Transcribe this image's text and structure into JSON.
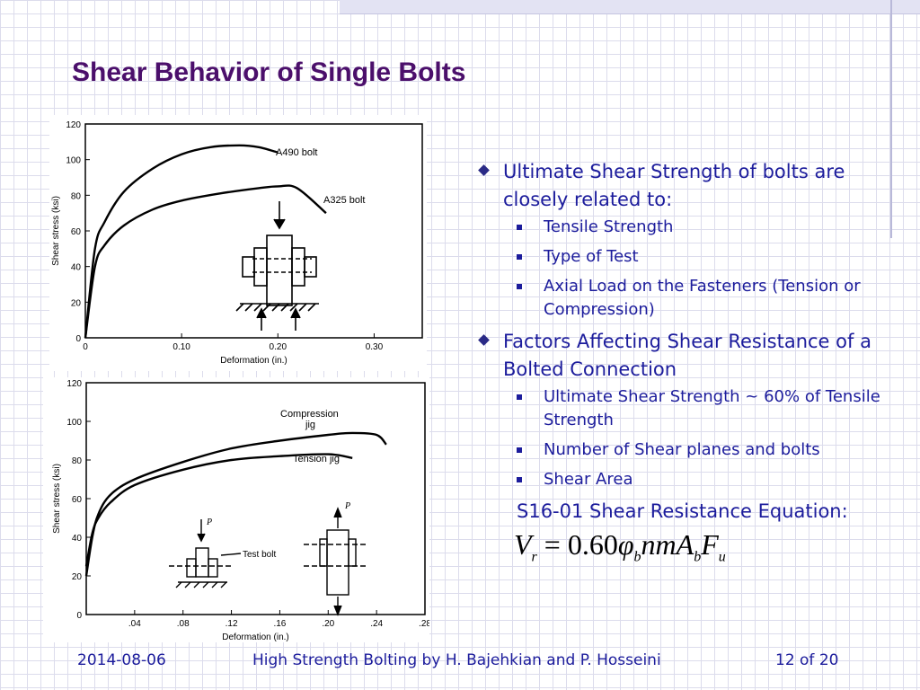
{
  "slide": {
    "title": "Shear Behavior of Single Bolts",
    "bullets": [
      {
        "text": "Ultimate Shear Strength of bolts are closely related to:",
        "sub": [
          "Tensile Strength",
          "Type of Test",
          "Axial Load on the Fasteners (Tension or Compression)"
        ]
      },
      {
        "text": "Factors Affecting Shear Resistance of a Bolted Connection",
        "sub": [
          "Ultimate Shear Strength ~ 60% of Tensile Strength",
          "Number of Shear planes and bolts",
          "Shear Area"
        ]
      }
    ],
    "equation_label": "S16-01 Shear Resistance Equation:",
    "equation": {
      "lhs": "V",
      "lhs_sub": "r",
      "eq": "=",
      "coef": "0.60",
      "phi": "φ",
      "phi_sub": "b",
      "mid": "nmA",
      "a_sub": "b",
      "f": "F",
      "f_sub": "u"
    },
    "footer": {
      "date": "2014-08-06",
      "center": "High Strength Bolting by H. Bajehkian and P. Hosseini",
      "page": "12 of 20"
    }
  },
  "colors": {
    "title": "#4b0f6b",
    "text": "#1c1c9c",
    "curve": "#000000"
  },
  "chart_data": [
    {
      "type": "line",
      "xlabel": "Deformation (in.)",
      "ylabel": "Shear stress (ksi)",
      "xlim": [
        0,
        0.35
      ],
      "ylim": [
        0,
        120
      ],
      "xticks": [
        0,
        0.1,
        0.2,
        0.3
      ],
      "xtick_labels": [
        "0",
        "0.10",
        "0.20",
        "0.30"
      ],
      "yticks": [
        0,
        20,
        40,
        60,
        80,
        100,
        120
      ],
      "ytick_labels": [
        "0",
        "20",
        "40",
        "60",
        "80",
        "100",
        "120"
      ],
      "annotations": [
        "A490 bolt",
        "A325 bolt"
      ],
      "series": [
        {
          "name": "A490 bolt",
          "x": [
            0,
            0.01,
            0.02,
            0.04,
            0.07,
            0.1,
            0.13,
            0.16,
            0.18,
            0.2
          ],
          "y": [
            0,
            50,
            65,
            82,
            95,
            103,
            107,
            108,
            107,
            104
          ]
        },
        {
          "name": "A325 bolt",
          "x": [
            0,
            0.01,
            0.02,
            0.04,
            0.07,
            0.1,
            0.14,
            0.18,
            0.2,
            0.22,
            0.25
          ],
          "y": [
            0,
            40,
            52,
            63,
            72,
            77,
            81,
            84,
            85,
            84,
            70
          ]
        }
      ]
    },
    {
      "type": "line",
      "xlabel": "Deformation (in.)",
      "ylabel": "Shear stress (ksi)",
      "xlim": [
        0,
        0.28
      ],
      "ylim": [
        0,
        120
      ],
      "xticks": [
        0.04,
        0.08,
        0.12,
        0.16,
        0.2,
        0.24,
        0.28
      ],
      "xtick_labels": [
        ".04",
        ".08",
        ".12",
        ".16",
        ".20",
        ".24",
        ".28"
      ],
      "yticks": [
        0,
        20,
        40,
        60,
        80,
        100,
        120
      ],
      "ytick_labels": [
        "0",
        "20",
        "40",
        "60",
        "80",
        "100",
        "120"
      ],
      "annotations": [
        "Compression",
        "jig",
        "Tension jig",
        "Test bolt",
        "P",
        "P"
      ],
      "series": [
        {
          "name": "Compression jig",
          "x": [
            0,
            0.005,
            0.01,
            0.02,
            0.04,
            0.08,
            0.12,
            0.16,
            0.2,
            0.22,
            0.24,
            0.248
          ],
          "y": [
            20,
            40,
            52,
            62,
            70,
            79,
            86,
            90,
            93,
            94,
            93,
            88
          ]
        },
        {
          "name": "Tension jig",
          "x": [
            0,
            0.005,
            0.01,
            0.02,
            0.04,
            0.08,
            0.12,
            0.16,
            0.2,
            0.22
          ],
          "y": [
            25,
            42,
            50,
            58,
            67,
            75,
            80,
            82,
            83,
            81
          ]
        }
      ]
    }
  ]
}
